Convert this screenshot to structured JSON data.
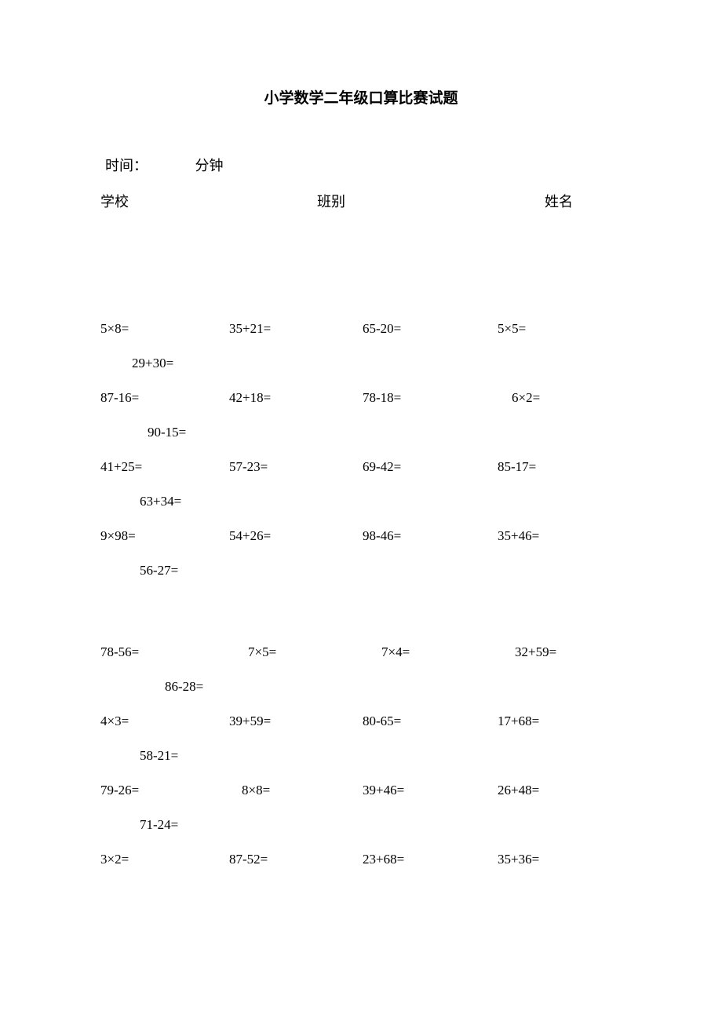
{
  "title": "小学数学二年级口算比赛试题",
  "timeLabel": "时间：",
  "timeUnit": "分钟",
  "infoSchool": "学校",
  "infoClass": "班别",
  "infoName": "姓名",
  "group1": [
    {
      "main": [
        "5×8=",
        "35+21=",
        "65-20=",
        "5×5="
      ],
      "extra": "29+30=",
      "extraIndent": 40
    },
    {
      "main": [
        "87-16=",
        "42+18=",
        "78-18=",
        "6×2="
      ],
      "extra": "90-15=",
      "extraIndent": 60,
      "c4Indent": 18
    },
    {
      "main": [
        "41+25=",
        "57-23=",
        "69-42=",
        "85-17="
      ],
      "extra": "63+34=",
      "extraIndent": 50
    },
    {
      "main": [
        "9×98=",
        "54+26=",
        "98-46=",
        "35+46="
      ],
      "extra": "56-27=",
      "extraIndent": 50
    }
  ],
  "group2": [
    {
      "main": [
        "78-56=",
        "7×5=",
        "7×4=",
        "32+59="
      ],
      "extra": "86-28=",
      "extraIndent": 82,
      "c2Indent": 24,
      "c3Indent": 24,
      "c4Indent": 22
    },
    {
      "main": [
        "4×3=",
        "39+59=",
        "80-65=",
        "17+68="
      ],
      "extra": "58-21=",
      "extraIndent": 50
    },
    {
      "main": [
        "79-26=",
        "8×8=",
        "39+46=",
        "26+48="
      ],
      "extra": "71-24=",
      "extraIndent": 50,
      "c2Indent": 16
    },
    {
      "main": [
        "3×2=",
        "87-52=",
        "23+68=",
        "35+36="
      ],
      "extra": "",
      "extraIndent": 0
    }
  ]
}
